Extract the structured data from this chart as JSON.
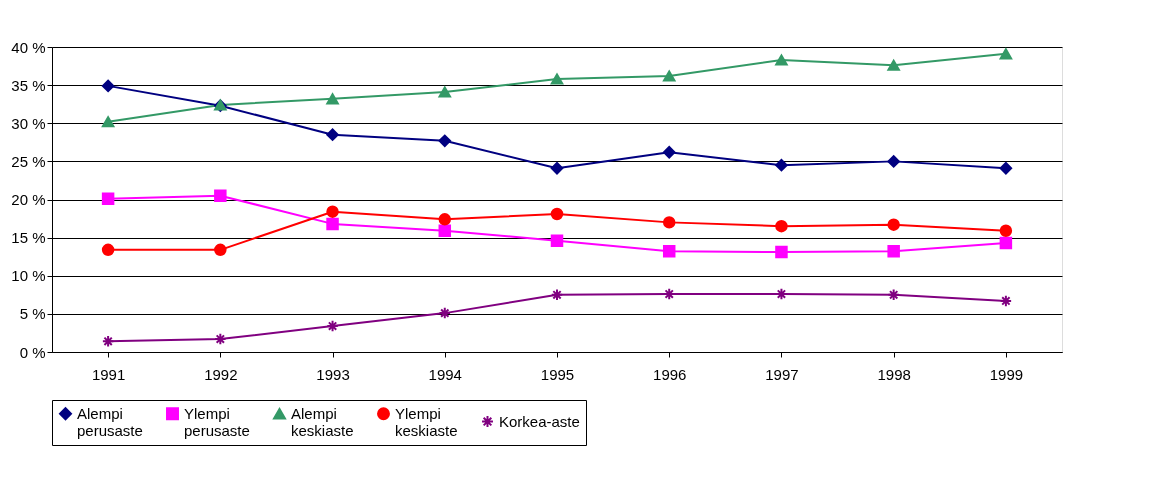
{
  "chart_data": {
    "type": "line",
    "categories": [
      "1991",
      "1992",
      "1993",
      "1994",
      "1995",
      "1996",
      "1997",
      "1998",
      "1999"
    ],
    "series": [
      {
        "name": "Alempi perusaste",
        "color": "#000080",
        "marker": "diamond",
        "values": [
          34.9,
          32.3,
          28.5,
          27.7,
          24.1,
          26.2,
          24.5,
          25.0,
          24.1
        ]
      },
      {
        "name": "Ylempi perusaste",
        "color": "#ff00ff",
        "marker": "square",
        "values": [
          20.1,
          20.5,
          16.8,
          15.9,
          14.6,
          13.2,
          13.1,
          13.2,
          14.3
        ]
      },
      {
        "name": "Alempi keskiaste",
        "color": "#339966",
        "marker": "triangle",
        "values": [
          30.2,
          32.4,
          33.2,
          34.1,
          35.8,
          36.2,
          38.3,
          37.6,
          39.1
        ]
      },
      {
        "name": "Ylempi keskiaste",
        "color": "#ff0000",
        "marker": "circle",
        "values": [
          13.4,
          13.4,
          18.4,
          17.4,
          18.1,
          17.0,
          16.5,
          16.7,
          15.9
        ]
      },
      {
        "name": "Korkea-aste",
        "color": "#800080",
        "marker": "cross",
        "values": [
          1.4,
          1.7,
          3.4,
          5.1,
          7.5,
          7.6,
          7.6,
          7.5,
          6.7
        ]
      }
    ],
    "ylim": [
      0,
      40
    ],
    "yticks": [
      {
        "value": 0,
        "label": "0 %"
      },
      {
        "value": 5,
        "label": "5 %"
      },
      {
        "value": 10,
        "label": "10 %"
      },
      {
        "value": 15,
        "label": "15 %"
      },
      {
        "value": 20,
        "label": "20 %"
      },
      {
        "value": 25,
        "label": "25 %"
      },
      {
        "value": 30,
        "label": "30 %"
      },
      {
        "value": 35,
        "label": "35 %"
      },
      {
        "value": 40,
        "label": "40 %"
      }
    ],
    "grid": "y",
    "legend": "bottom",
    "line_style": "solid"
  }
}
